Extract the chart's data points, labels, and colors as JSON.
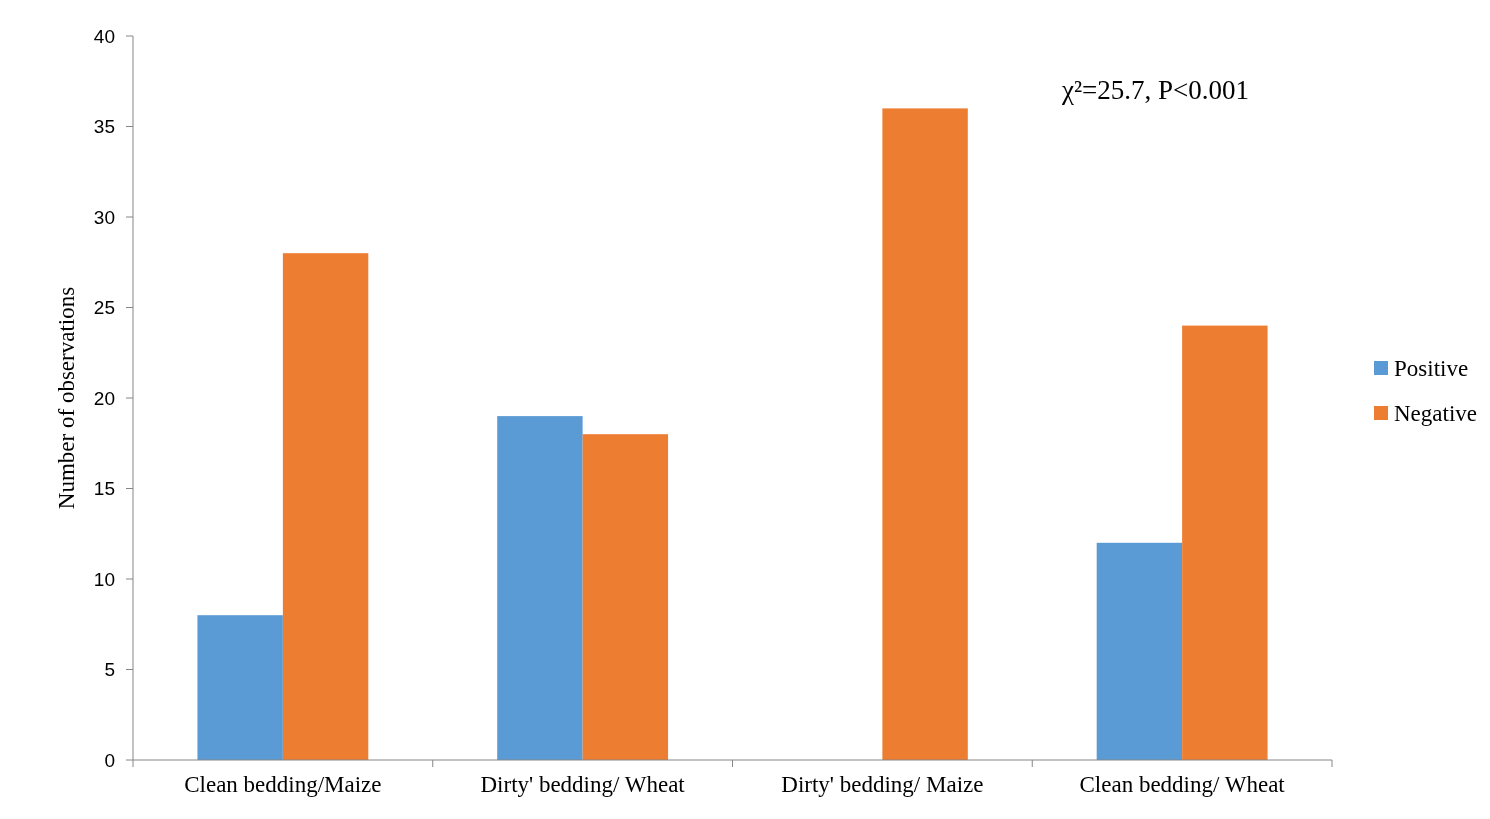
{
  "chart_data": {
    "type": "bar",
    "ylabel": "Number of observations",
    "categories": [
      "Clean bedding/Maize",
      "Dirty' bedding/ Wheat",
      "Dirty' bedding/ Maize",
      "Clean bedding/ Wheat"
    ],
    "series": [
      {
        "name": "Positive",
        "color": "#5b9bd5",
        "values": [
          8,
          19,
          0,
          12
        ]
      },
      {
        "name": "Negative",
        "color": "#ed7d31",
        "values": [
          28,
          18,
          36,
          24
        ]
      }
    ],
    "ylim": [
      0,
      40
    ],
    "yticks": [
      0,
      5,
      10,
      15,
      20,
      25,
      30,
      35,
      40
    ],
    "grid": false,
    "legend": "right",
    "annotations": [
      "χ²=25.7, P<0.001"
    ]
  }
}
